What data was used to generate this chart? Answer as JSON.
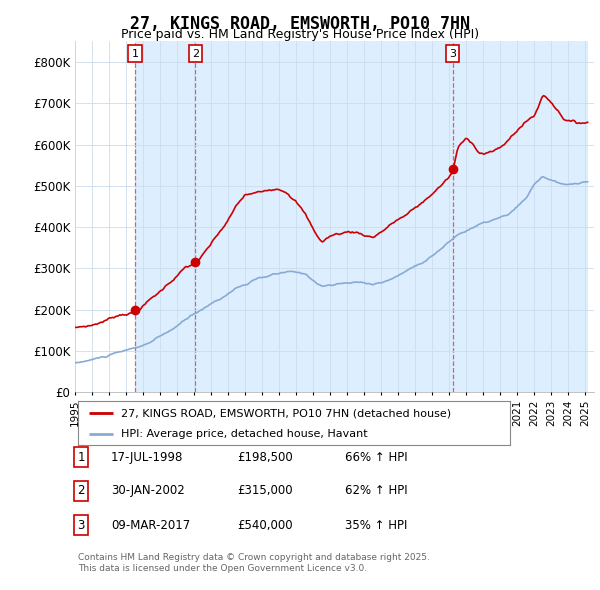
{
  "title": "27, KINGS ROAD, EMSWORTH, PO10 7HN",
  "subtitle": "Price paid vs. HM Land Registry's House Price Index (HPI)",
  "background_color": "#ffffff",
  "plot_bg_color": "#ffffff",
  "shade_color": "#ddeeff",
  "ylim": [
    0,
    850000
  ],
  "yticks": [
    0,
    100000,
    200000,
    300000,
    400000,
    500000,
    600000,
    700000,
    800000
  ],
  "ytick_labels": [
    "£0",
    "£100K",
    "£200K",
    "£300K",
    "£400K",
    "£500K",
    "£600K",
    "£700K",
    "£800K"
  ],
  "sale_dates_num": [
    1998.54,
    2002.08,
    2017.19
  ],
  "sale_prices": [
    198500,
    315000,
    540000
  ],
  "sale_labels": [
    "1",
    "2",
    "3"
  ],
  "sale_dates_str": [
    "17-JUL-1998",
    "30-JAN-2002",
    "09-MAR-2017"
  ],
  "sale_hpi_pct": [
    "66% ↑ HPI",
    "62% ↑ HPI",
    "35% ↑ HPI"
  ],
  "sale_price_str": [
    "£198,500",
    "£315,000",
    "£540,000"
  ],
  "red_line_label": "27, KINGS ROAD, EMSWORTH, PO10 7HN (detached house)",
  "blue_line_label": "HPI: Average price, detached house, Havant",
  "footer": "Contains HM Land Registry data © Crown copyright and database right 2025.\nThis data is licensed under the Open Government Licence v3.0.",
  "red_color": "#cc0000",
  "blue_color": "#88aad4",
  "vline_color": "#cc4444",
  "grid_color": "#ccddee"
}
